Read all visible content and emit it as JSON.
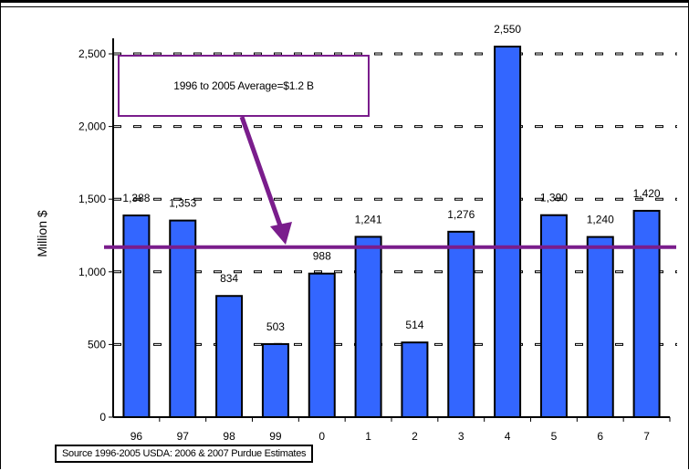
{
  "chart_data": {
    "type": "bar",
    "categories": [
      "96",
      "97",
      "98",
      "99",
      "0",
      "1",
      "2",
      "3",
      "4",
      "5",
      "6",
      "7"
    ],
    "values": [
      1388,
      1353,
      834,
      503,
      988,
      1241,
      514,
      1276,
      2550,
      1390,
      1240,
      1420
    ],
    "data_labels": [
      "1,388",
      "1,353",
      "834",
      "503",
      "988",
      "1,241",
      "514",
      "1,276",
      "2,550",
      "1,390",
      "1,240",
      "1,420"
    ],
    "ylabel": "Million $",
    "ylim": [
      0,
      2500
    ],
    "yticks": [
      0,
      500,
      1000,
      1500,
      2000,
      2500
    ],
    "ytick_labels": [
      "0",
      "500",
      "1,000",
      "1,500",
      "2,000",
      "2,500"
    ],
    "average_line": 1170,
    "grid": true,
    "bar_color": "#3366ff",
    "average_color": "#7a1d8c"
  },
  "annotation": "1996 to 2005 Average=$1.2 B",
  "source": "Source 1996-2005 USDA:  2006 & 2007 Purdue Estimates"
}
